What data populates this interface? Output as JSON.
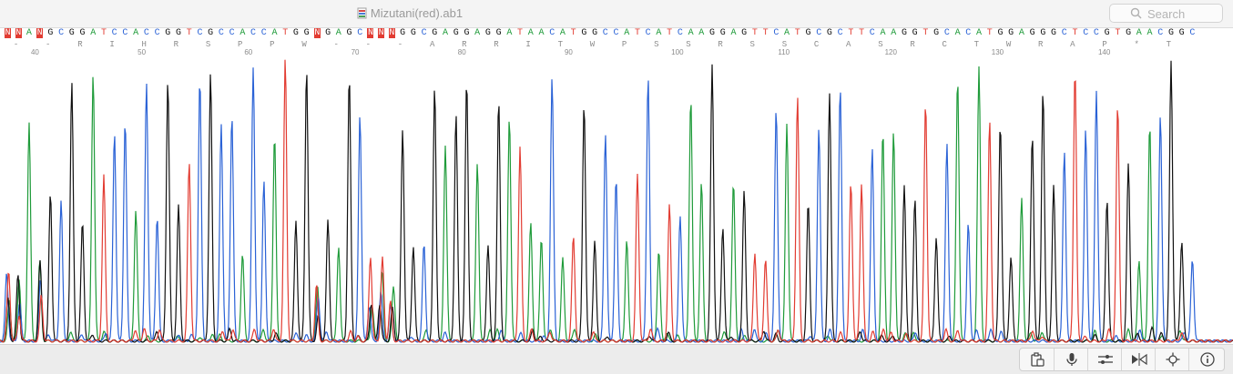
{
  "window": {
    "title": "Mizutani(red).ab1"
  },
  "search": {
    "placeholder": "Search"
  },
  "colors": {
    "A": "#1f9b3a",
    "C": "#2a62d6",
    "G": "#111111",
    "T": "#e23c32",
    "N": "#e23c32"
  },
  "sequence": "NNANGCGGATCCACCGGTCGCCACCATGGNGAGCNNNGGCGAGGAGGATAACATGGCCATCATCAAGGAGTTCATGCGCTTCAAGGTGCACATGGAGGGCTCCGTGAACGGC",
  "translation": [
    "-",
    "-",
    "R",
    "I",
    "H",
    "R",
    "S",
    "P",
    "P",
    "W",
    "-",
    "-",
    "-",
    "A",
    "R",
    "R",
    "I",
    "T",
    "W",
    "P",
    "S",
    "S",
    "R",
    "S",
    "S",
    "C",
    "A",
    "S",
    "R",
    "C",
    "T",
    "W",
    "R",
    "A",
    "P",
    "*",
    "T"
  ],
  "positions": [
    "40",
    "50",
    "60",
    "70",
    "80",
    "90",
    "100",
    "110",
    "120",
    "130",
    "140"
  ],
  "toolbar": [
    {
      "name": "clipboard-icon"
    },
    {
      "name": "microphone-icon"
    },
    {
      "name": "sliders-icon"
    },
    {
      "name": "flip-icon"
    },
    {
      "name": "target-icon"
    },
    {
      "name": "info-icon"
    }
  ]
}
